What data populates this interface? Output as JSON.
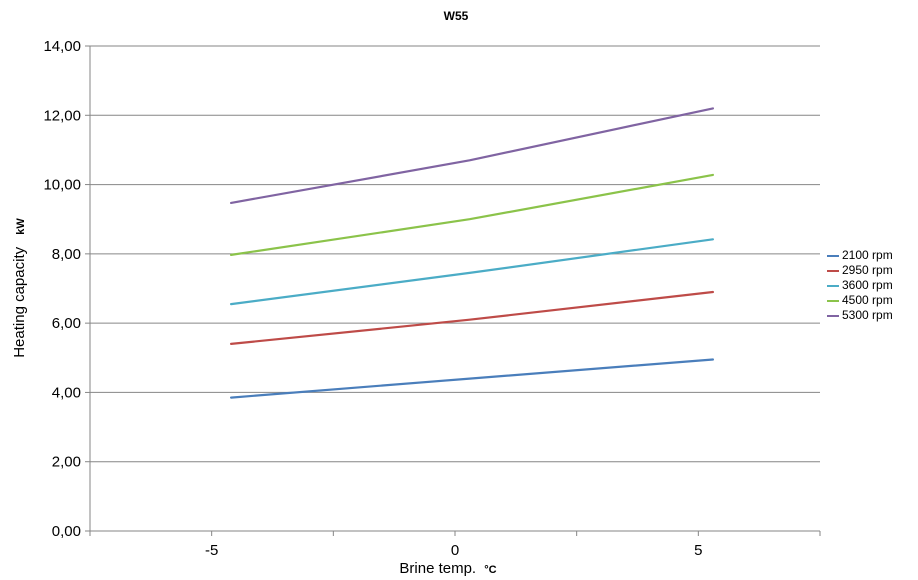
{
  "chart_data": {
    "type": "line",
    "title": "W55",
    "xlabel": "Brine temp.",
    "xlabel_unit": "°C",
    "ylabel": "Heating capacity",
    "ylabel_unit": "kW",
    "xlim": [
      -7.5,
      7.5
    ],
    "ylim": [
      0,
      14
    ],
    "x_ticks": [
      "-5",
      "0",
      "5"
    ],
    "x_tick_values": [
      -5,
      0,
      5
    ],
    "y_ticks": [
      "0,00",
      "2,00",
      "4,00",
      "6,00",
      "8,00",
      "10,00",
      "12,00",
      "14,00"
    ],
    "y_tick_values": [
      0,
      2,
      4,
      6,
      8,
      10,
      12,
      14
    ],
    "x": [
      -4.6,
      0.3,
      5.3
    ],
    "series": [
      {
        "name": "2100 rpm",
        "color": "#4a7ebb",
        "values": [
          3.85,
          4.4,
          4.95
        ]
      },
      {
        "name": "2950 rpm",
        "color": "#be4b48",
        "values": [
          5.4,
          6.1,
          6.9
        ]
      },
      {
        "name": "3600 rpm",
        "color": "#4bacc6",
        "values": [
          6.55,
          7.45,
          8.42
        ]
      },
      {
        "name": "4500 rpm",
        "color": "#8bc34a",
        "values": [
          7.97,
          9.0,
          10.28
        ]
      },
      {
        "name": "5300 rpm",
        "color": "#8064a2",
        "values": [
          9.47,
          10.7,
          12.2
        ]
      }
    ],
    "grid": true,
    "legend_position": "right"
  }
}
